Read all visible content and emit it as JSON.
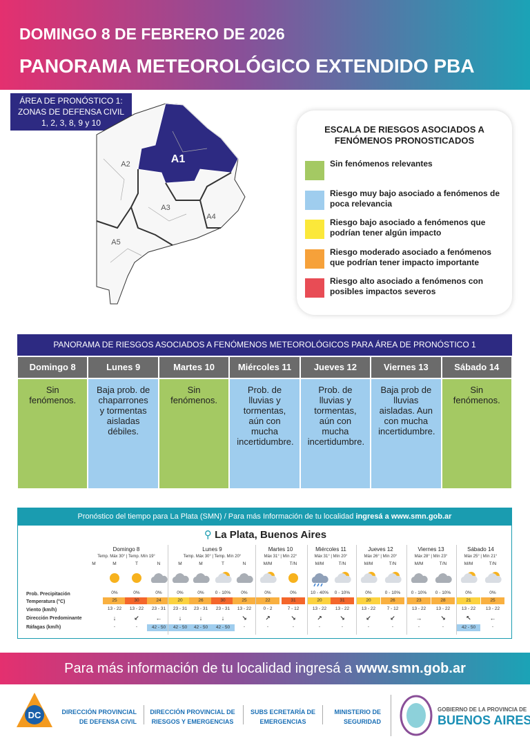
{
  "header": {
    "date": "DOMINGO 8 DE FEBRERO DE 2026",
    "title": "PANORAMA METEOROLÓGICO EXTENDIDO PBA"
  },
  "area": {
    "lines": [
      "ÁREA DE PRONÓSTICO 1:",
      "ZONAS DE DEFENSA CIVIL",
      "1, 2, 3, 8, 9 y 10"
    ]
  },
  "map": {
    "labels": [
      "A1",
      "A2",
      "A3",
      "A4",
      "A5"
    ]
  },
  "legend": {
    "title": "ESCALA DE RIESGOS ASOCIADOS A FENÓMENOS PRONOSTICADOS",
    "items": [
      {
        "color": "#a4c963",
        "text": "Sin fenómenos relevantes"
      },
      {
        "color": "#9fcdee",
        "text": "Riesgo muy bajo asociado a fenómenos de poca relevancia"
      },
      {
        "color": "#fbe83a",
        "text": "Riesgo bajo asociado a fenómenos que podrían tener algún impacto"
      },
      {
        "color": "#f6a13a",
        "text": "Riesgo moderado asociado a fenómenos que podrían tener impacto importante"
      },
      {
        "color": "#e84c55",
        "text": "Riesgo alto asociado a fenómenos con posibles impactos severos"
      }
    ]
  },
  "risk_table": {
    "title": "PANORAMA DE RIESGOS ASOCIADOS A FENÓMENOS METEOROLÓGICOS PARA ÁREA DE PRONÓSTICO 1",
    "days": [
      {
        "day": "Domingo 8",
        "text": "Sin fenómenos.",
        "color": "#a4c963"
      },
      {
        "day": "Lunes 9",
        "text": "Baja prob. de chaparrones y tormentas aisladas débiles.",
        "color": "#9fcdee"
      },
      {
        "day": "Martes 10",
        "text": "Sin fenómenos.",
        "color": "#a4c963"
      },
      {
        "day": "Miércoles 11",
        "text": "Prob. de lluvias y tormentas, aún con mucha incertidumbre.",
        "color": "#9fcdee"
      },
      {
        "day": "Jueves 12",
        "text": "Prob. de lluvias y tormentas, aún con mucha incertidumbre.",
        "color": "#9fcdee"
      },
      {
        "day": "Viernes 13",
        "text": "Baja prob de lluvias aisladas. Aun con mucha incertidumbre.",
        "color": "#9fcdee"
      },
      {
        "day": "Sábado 14",
        "text": "Sin fenómenos.",
        "color": "#a4c963"
      }
    ]
  },
  "forecast": {
    "banner": "Pronóstico del tiempo para La Plata (SMN) / Para más Información de tu localidad ",
    "banner_bold": "ingresá a www.smn.gob.ar",
    "location": "La Plata, Buenos Aires",
    "row_labels": [
      "Prob. Precipitación",
      "Temperatura (°C)",
      "Viento (km/h)",
      "Dirección Predominante",
      "Ráfagas (km/h)"
    ],
    "days": [
      {
        "day": "Domingo 8",
        "summary": "Temp. Máx 30° | Temp. Mín 19°",
        "periods": [
          {
            "period": "M",
            "icon": null,
            "precip": null,
            "temp": null,
            "temp_color": null,
            "wind": null,
            "dir": null,
            "gust": null
          },
          {
            "period": "M",
            "icon": "sun",
            "precip": "0%",
            "temp": "25",
            "temp_color": "#f9b040",
            "wind": "13 - 22",
            "dir": "↓",
            "gust": "-"
          },
          {
            "period": "T",
            "icon": "sun",
            "precip": "0%",
            "temp": "30",
            "temp_color": "#f4662b",
            "wind": "13 - 22",
            "dir": "↙",
            "gust": "-"
          },
          {
            "period": "N",
            "icon": "cloud",
            "precip": "0%",
            "temp": "24",
            "temp_color": "#f9b040",
            "wind": "23 - 31",
            "dir": "←",
            "gust": "42 - 50"
          }
        ]
      },
      {
        "day": "Lunes 9",
        "summary": "Temp. Máx 30° | Temp. Mín 20°",
        "periods": [
          {
            "period": "M",
            "icon": "cloud",
            "precip": "0%",
            "temp": "20",
            "temp_color": "#fcd23f",
            "wind": "23 - 31",
            "dir": "↓",
            "gust": "42 - 50"
          },
          {
            "period": "M",
            "icon": "cloud",
            "precip": "0%",
            "temp": "26",
            "temp_color": "#f9b040",
            "wind": "23 - 31",
            "dir": "↓",
            "gust": "42 - 50"
          },
          {
            "period": "T",
            "icon": "sun_cloud",
            "precip": "0 - 10%",
            "temp": "30",
            "temp_color": "#f4662b",
            "wind": "23 - 31",
            "dir": "↓",
            "gust": "42 - 50"
          },
          {
            "period": "N",
            "icon": "cloud",
            "precip": "0%",
            "temp": "25",
            "temp_color": "#f9b040",
            "wind": "13 - 22",
            "dir": "↘",
            "gust": "-"
          }
        ]
      },
      {
        "day": "Martes 10",
        "summary": "Máx 31° | Mín 22°",
        "periods": [
          {
            "period": "M/M",
            "icon": "sun_cloud",
            "precip": "0%",
            "temp": "22",
            "temp_color": "#f9b040",
            "wind": "0 - 2",
            "dir": "↗",
            "gust": "-"
          },
          {
            "period": "T/N",
            "icon": "sun",
            "precip": "0%",
            "temp": "31",
            "temp_color": "#f4662b",
            "wind": "7 - 12",
            "dir": "↘",
            "gust": "-"
          }
        ]
      },
      {
        "day": "Miércoles 11",
        "summary": "Máx 31° | Mín 20°",
        "periods": [
          {
            "period": "M/M",
            "icon": "rain",
            "precip": "10 - 40%",
            "temp": "20",
            "temp_color": "#fcd23f",
            "wind": "13 - 22",
            "dir": "↗",
            "gust": "-"
          },
          {
            "period": "T/N",
            "icon": "sun_cloud",
            "precip": "0 - 10%",
            "temp": "31",
            "temp_color": "#f4662b",
            "wind": "13 - 22",
            "dir": "↘",
            "gust": "-"
          }
        ]
      },
      {
        "day": "Jueves 12",
        "summary": "Máx 26° | Mín 20°",
        "periods": [
          {
            "period": "M/M",
            "icon": "sun_cloud",
            "precip": "0%",
            "temp": "20",
            "temp_color": "#fcd23f",
            "wind": "13 - 22",
            "dir": "↙",
            "gust": "-"
          },
          {
            "period": "T/N",
            "icon": "sun_cloud",
            "precip": "0 - 10%",
            "temp": "26",
            "temp_color": "#f9b040",
            "wind": "7 - 12",
            "dir": "↙",
            "gust": "-"
          }
        ]
      },
      {
        "day": "Viernes 13",
        "summary": "Máx 28° | Mín 23°",
        "periods": [
          {
            "period": "M/M",
            "icon": "cloud",
            "precip": "0 - 10%",
            "temp": "23",
            "temp_color": "#f9b040",
            "wind": "13 - 22",
            "dir": "→",
            "gust": "-"
          },
          {
            "period": "T/N",
            "icon": "cloud",
            "precip": "0 - 10%",
            "temp": "28",
            "temp_color": "#f9b040",
            "wind": "13 - 22",
            "dir": "↘",
            "gust": "-"
          }
        ]
      },
      {
        "day": "Sábado 14",
        "summary": "Máx 25° | Mín 21°",
        "periods": [
          {
            "period": "M/M",
            "icon": "sun_cloud",
            "precip": "0%",
            "temp": "21",
            "temp_color": "#fcd23f",
            "wind": "13 - 22",
            "dir": "↖",
            "gust": "42 - 50"
          },
          {
            "period": "T/N",
            "icon": "sun_cloud",
            "precip": "0%",
            "temp": "25",
            "temp_color": "#f9b040",
            "wind": "13 - 22",
            "dir": "←",
            "gust": "-"
          }
        ]
      }
    ]
  },
  "footer": {
    "text": "Para más información de tu localidad ingresá a ",
    "link": "www.smn.gob.ar"
  },
  "logos": {
    "dc": "DC",
    "defensa_civil": "DIRECCIÓN PROVINCIAL DE DEFENSA CIVIL",
    "riesgos": "DIRECCIÓN PROVINCIAL DE RIESGOS Y EMERGENCIAS",
    "subsecretaria": "SUBS ECRETARÍA DE EMERGENCIAS",
    "ministerio": "MINISTERIO DE SEGURIDAD",
    "gobierno": "GOBIERNO DE LA PROVINCIA DE",
    "provincia": "BUENOS AIRES"
  }
}
